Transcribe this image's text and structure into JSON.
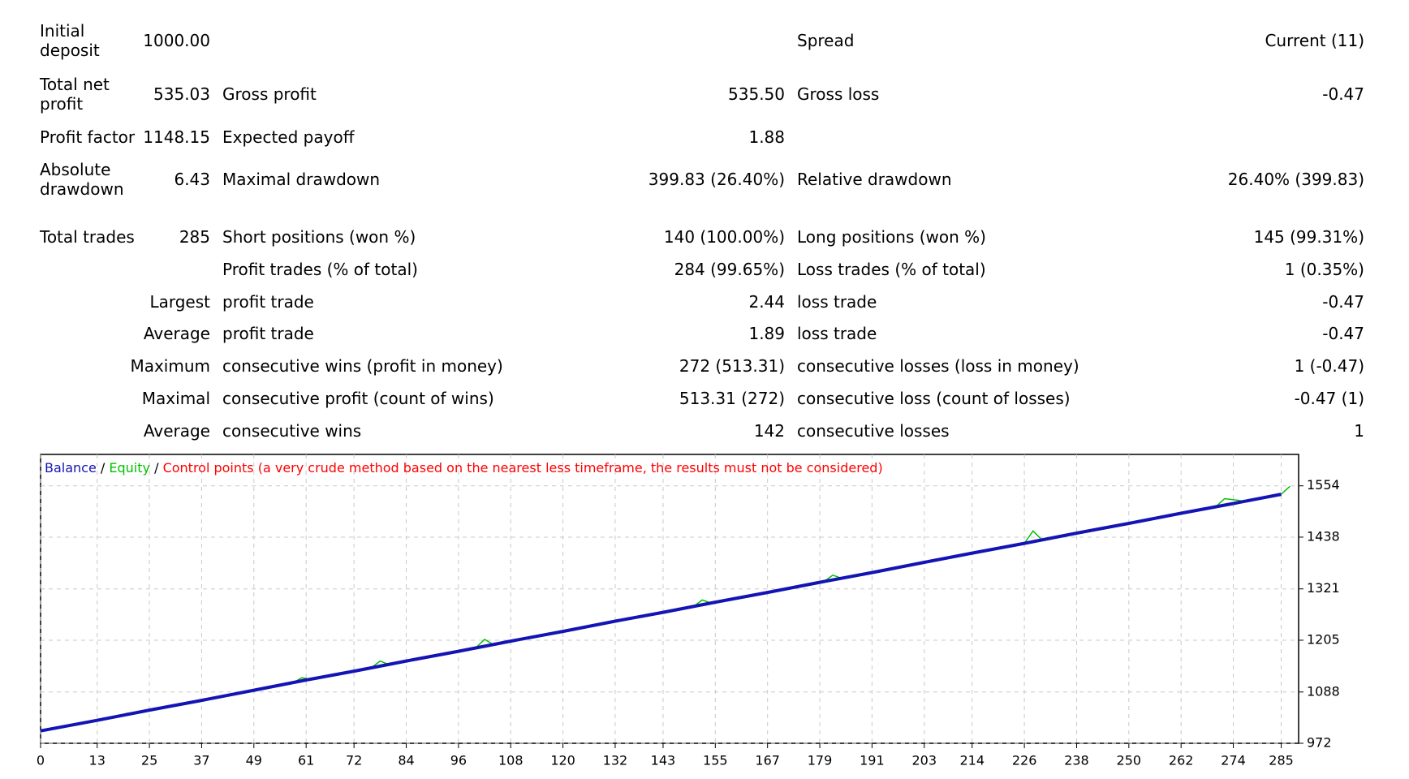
{
  "report": {
    "rows": [
      [
        "Initial deposit",
        "1000.00",
        null,
        null,
        "Spread",
        "Current (11)"
      ],
      [
        "Total net profit",
        "535.03",
        "Gross profit",
        "535.50",
        "Gross loss",
        "-0.47"
      ],
      [
        "Profit factor",
        "1148.15",
        "Expected payoff",
        "1.88",
        null,
        null
      ],
      [
        "Absolute drawdown",
        "6.43",
        "Maximal drawdown",
        "399.83 (26.40%)",
        "Relative drawdown",
        "26.40% (399.83)"
      ],
      [
        "Total trades",
        "285",
        "Short positions (won %)",
        "140 (100.00%)",
        "Long positions (won %)",
        "145 (99.31%)"
      ],
      [
        null,
        null,
        "Profit trades (% of total)",
        "284 (99.65%)",
        "Loss trades (% of total)",
        "1 (0.35%)"
      ],
      [
        null,
        "Largest",
        "profit trade",
        "2.44",
        "loss trade",
        "-0.47"
      ],
      [
        null,
        "Average",
        "profit trade",
        "1.89",
        "loss trade",
        "-0.47"
      ],
      [
        null,
        "Maximum",
        "consecutive wins (profit in money)",
        "272 (513.31)",
        "consecutive losses (loss in money)",
        "1 (-0.47)"
      ],
      [
        null,
        "Maximal",
        "consecutive profit (count of wins)",
        "513.31 (272)",
        "consecutive loss (count of losses)",
        "-0.47 (1)"
      ],
      [
        null,
        "Average",
        "consecutive wins",
        "142",
        "consecutive losses",
        "1"
      ]
    ]
  },
  "chart_data": {
    "type": "line",
    "legend_separator": "/",
    "legend_note": "Control points (a very crude method based on the nearest less timeframe, the results must not be considered)",
    "legend_note_color": "#ff0000",
    "series": [
      {
        "name": "Balance",
        "color": "#1414b4",
        "x": [
          0,
          13,
          25,
          37,
          49,
          61,
          72,
          84,
          96,
          108,
          120,
          132,
          143,
          155,
          167,
          179,
          191,
          203,
          214,
          226,
          238,
          250,
          262,
          274,
          285
        ],
        "values": [
          1000,
          1024,
          1047,
          1069,
          1092,
          1115,
          1135,
          1158,
          1180,
          1203,
          1225,
          1248,
          1268,
          1291,
          1313,
          1336,
          1358,
          1381,
          1402,
          1424,
          1447,
          1469,
          1492,
          1514,
          1535
        ]
      },
      {
        "name": "Equity",
        "color": "#00c000",
        "x": [
          0,
          18,
          20,
          22,
          58,
          60,
          62,
          76,
          78,
          80,
          100,
          102,
          104,
          150,
          152,
          154,
          180,
          182,
          184,
          226,
          228,
          230,
          270,
          272,
          276,
          278,
          285,
          287
        ],
        "values": [
          1000,
          1034,
          1040,
          1041,
          1109,
          1120,
          1117,
          1143,
          1158,
          1150,
          1188,
          1207,
          1195,
          1281,
          1296,
          1289,
          1338,
          1352,
          1345,
          1424,
          1452,
          1432,
          1507,
          1525,
          1520,
          1521,
          1535,
          1553
        ]
      }
    ],
    "xlim": [
      0,
      289
    ],
    "ylim": [
      972,
      1625
    ],
    "xticks": [
      0,
      13,
      25,
      37,
      49,
      61,
      72,
      84,
      96,
      108,
      120,
      132,
      143,
      155,
      167,
      179,
      191,
      203,
      214,
      226,
      238,
      250,
      262,
      274,
      285
    ],
    "yticks": [
      972,
      1088,
      1205,
      1321,
      1438,
      1554
    ],
    "grid": true
  }
}
